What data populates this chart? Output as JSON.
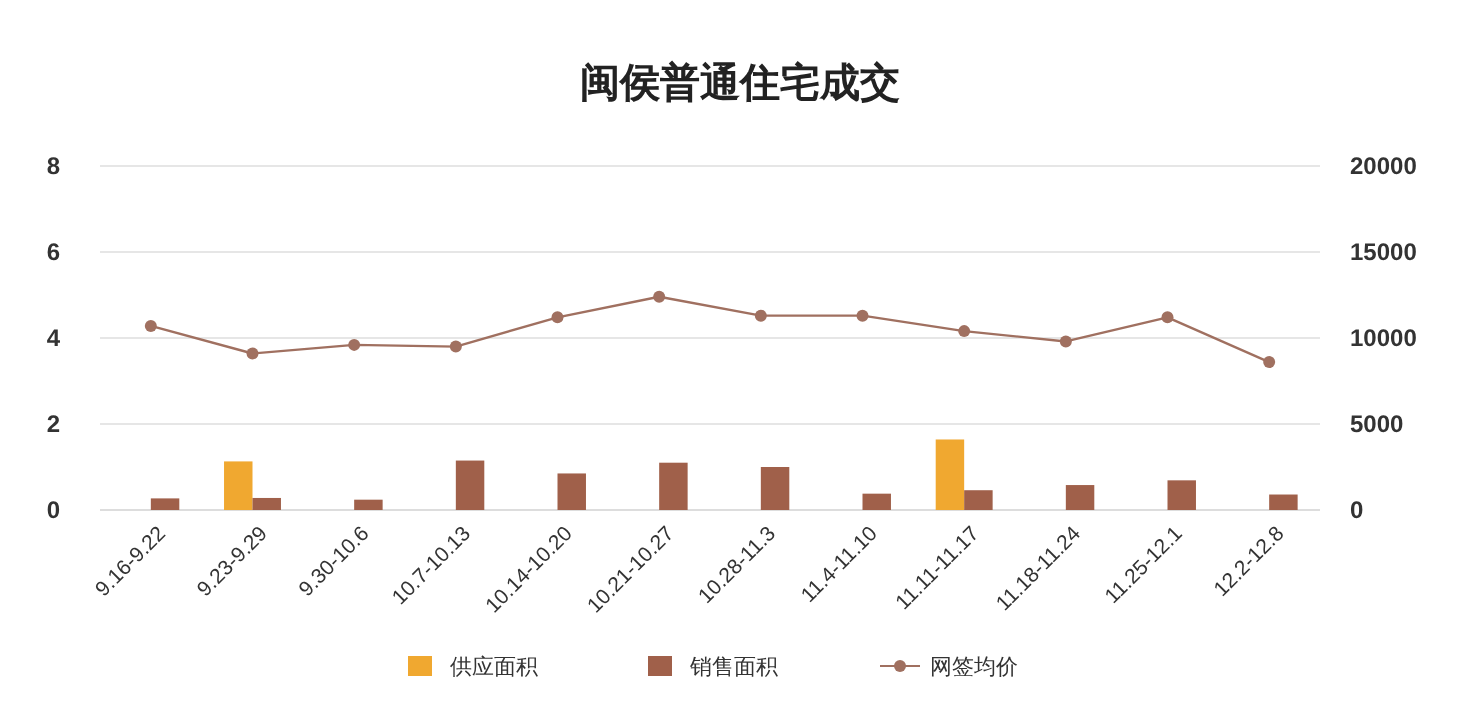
{
  "chart_data": {
    "type": "bar",
    "title": "闽侯普通住宅成交",
    "categories": [
      "9.16-9.22",
      "9.23-9.29",
      "9.30-10.6",
      "10.7-10.13",
      "10.14-10.20",
      "10.21-10.27",
      "10.28-11.3",
      "11.4-11.10",
      "11.11-11.17",
      "11.18-11.24",
      "11.25-12.1",
      "12.2-12.8"
    ],
    "series": [
      {
        "name": "供应面积",
        "color": "#f0a830",
        "values": [
          0,
          1.13,
          0,
          0,
          0,
          0,
          0,
          0,
          1.64,
          0,
          0,
          0
        ]
      },
      {
        "name": "销售面积",
        "color": "#a0604a",
        "values": [
          0.27,
          0.28,
          0.24,
          1.15,
          0.85,
          1.1,
          1.0,
          0.38,
          0.46,
          0.58,
          0.69,
          0.36
        ]
      },
      {
        "name": "网签均价",
        "type": "line",
        "axis": "y2",
        "color": "#a07060",
        "marker": "circle",
        "values": [
          10700,
          9100,
          9600,
          9500,
          11200,
          12400,
          11300,
          11300,
          10400,
          9800,
          11200,
          8600
        ]
      }
    ],
    "ylim": [
      0,
      8
    ],
    "yticks": [
      0,
      2,
      4,
      6,
      8
    ],
    "y2lim": [
      0,
      20000
    ],
    "y2ticks": [
      0,
      5000,
      10000,
      15000,
      20000
    ],
    "grid": "y",
    "legend": "bottom"
  }
}
